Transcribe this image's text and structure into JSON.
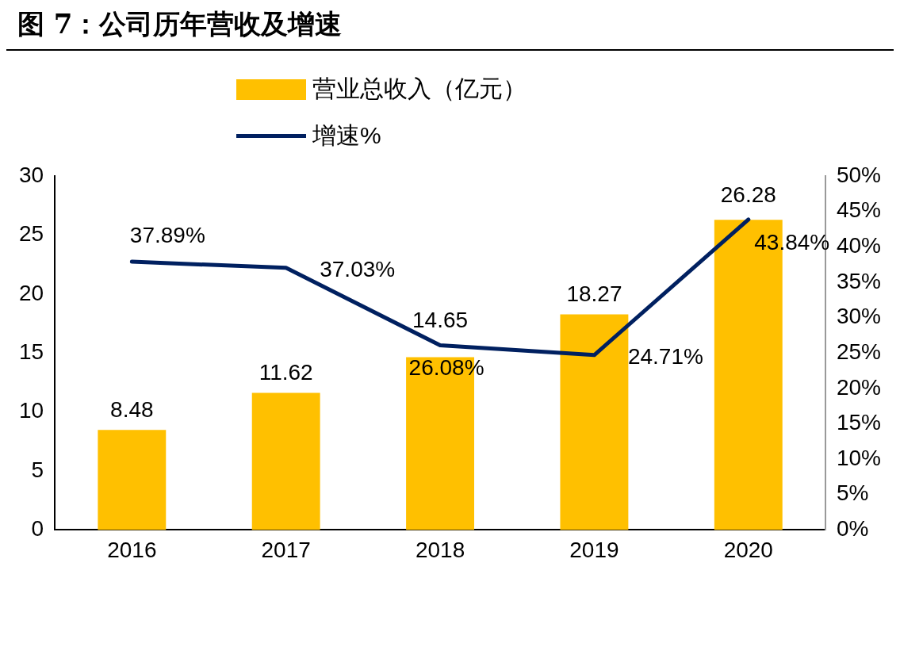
{
  "chart_data": {
    "type": "bar",
    "title": "图 7：公司历年营收及增速",
    "categories": [
      "2016",
      "2017",
      "2018",
      "2019",
      "2020"
    ],
    "series": [
      {
        "name": "营业总收入（亿元）",
        "color": "#ffc000",
        "values": [
          8.48,
          11.62,
          14.65,
          18.27,
          26.28
        ],
        "value_labels": [
          "8.48",
          "11.62",
          "14.65",
          "18.27",
          "26.28"
        ]
      },
      {
        "name": "增速%",
        "type": "line",
        "axis": "y2",
        "color": "#002060",
        "values": [
          37.89,
          37.03,
          26.08,
          24.71,
          43.84
        ],
        "value_labels": [
          "37.89%",
          "37.03%",
          "26.08%",
          "24.71%",
          "43.84%"
        ]
      }
    ],
    "ylim": [
      0,
      30
    ],
    "yticks": [
      0,
      5,
      10,
      15,
      20,
      25,
      30
    ],
    "y2lim": [
      0,
      50
    ],
    "y2ticks": [
      {
        "value": 0,
        "label": "0%"
      },
      {
        "value": 5,
        "label": "5%"
      },
      {
        "value": 10,
        "label": "10%"
      },
      {
        "value": 15,
        "label": "15%"
      },
      {
        "value": 20,
        "label": "20%"
      },
      {
        "value": 25,
        "label": "25%"
      },
      {
        "value": 30,
        "label": "30%"
      },
      {
        "value": 35,
        "label": "35%"
      },
      {
        "value": 40,
        "label": "40%"
      },
      {
        "value": 45,
        "label": "45%"
      },
      {
        "value": 50,
        "label": "50%"
      }
    ],
    "grid": false,
    "legend": "top",
    "marker": "none",
    "line_style": "solid"
  }
}
